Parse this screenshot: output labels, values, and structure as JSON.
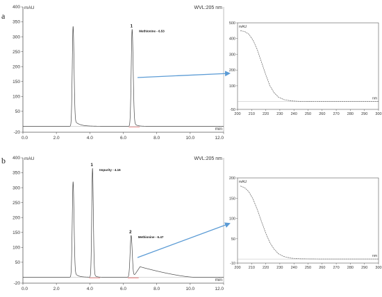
{
  "panels": [
    {
      "letter": "a",
      "chromatogram": {
        "type": "line",
        "y_unit": "mAU",
        "x_unit": "min",
        "wavelength_label": "WVL:205 nm",
        "xlim": [
          0,
          12
        ],
        "ylim": [
          -20,
          400
        ],
        "x_ticks": [
          "0.0",
          "2.0",
          "4.0",
          "6.0",
          "8.0",
          "10.0",
          "12.0"
        ],
        "y_ticks": [
          "-20",
          "50",
          "100",
          "150",
          "200",
          "250",
          "300",
          "350",
          "400"
        ],
        "peaks": [
          {
            "x": 3.0,
            "height": 335,
            "width": 0.05,
            "tail": 0.3
          },
          {
            "x": 6.53,
            "height": 325,
            "width": 0.055,
            "tail": 0.15
          }
        ],
        "peak_labels": [
          {
            "number": "1",
            "text": "Methionine - 6.53",
            "x": 6.53,
            "y": 325
          }
        ]
      },
      "spectrum": {
        "type": "line",
        "y_unit": "mAU",
        "x_unit": "nm",
        "xlim": [
          200,
          300
        ],
        "ylim": [
          -50,
          500
        ],
        "x_ticks": [
          "200",
          "210",
          "220",
          "230",
          "240",
          "250",
          "260",
          "270",
          "280",
          "290",
          "300"
        ],
        "y_ticks": [
          "-50",
          "100",
          "200",
          "300",
          "400",
          "500"
        ],
        "points": [
          [
            202,
            450
          ],
          [
            205,
            445
          ],
          [
            208,
            428
          ],
          [
            211,
            390
          ],
          [
            214,
            330
          ],
          [
            217,
            250
          ],
          [
            220,
            170
          ],
          [
            223,
            100
          ],
          [
            226,
            55
          ],
          [
            229,
            28
          ],
          [
            233,
            12
          ],
          [
            238,
            4
          ],
          [
            245,
            1
          ],
          [
            260,
            0
          ],
          [
            280,
            0
          ],
          [
            300,
            0
          ]
        ]
      }
    },
    {
      "letter": "b",
      "chromatogram": {
        "type": "line",
        "y_unit": "mAU",
        "x_unit": "min",
        "wavelength_label": "WVL:205 nm",
        "xlim": [
          0,
          12
        ],
        "ylim": [
          -20,
          400
        ],
        "x_ticks": [
          "0.0",
          "2.0",
          "4.0",
          "6.0",
          "8.0",
          "10.0",
          "12.0"
        ],
        "y_ticks": [
          "-20",
          "50",
          "100",
          "150",
          "200",
          "250",
          "300",
          "350",
          "400"
        ],
        "peaks": [
          {
            "x": 3.0,
            "height": 320,
            "width": 0.05,
            "tail": 0.2
          },
          {
            "x": 4.16,
            "height": 365,
            "width": 0.045,
            "tail": 0.1
          },
          {
            "x": 6.47,
            "height": 140,
            "width": 0.06,
            "tail": 0.1
          }
        ],
        "hump": {
          "start": 6.6,
          "peak_x": 7.0,
          "peak_y": 35,
          "end": 10.2
        },
        "peak_labels": [
          {
            "number": "1",
            "text": "Impurity - 4.16",
            "x": 4.16,
            "y": 365
          },
          {
            "number": "2",
            "text": "Methionine - 6.47",
            "x": 6.47,
            "y": 140
          }
        ]
      },
      "spectrum": {
        "type": "line",
        "y_unit": "mAU",
        "x_unit": "nm",
        "xlim": [
          200,
          300
        ],
        "ylim": [
          -10,
          200
        ],
        "x_ticks": [
          "200",
          "210",
          "220",
          "230",
          "240",
          "250",
          "260",
          "270",
          "280",
          "290",
          "300"
        ],
        "y_ticks": [
          "-10",
          "50",
          "100",
          "150",
          "200"
        ],
        "points": [
          [
            202,
            180
          ],
          [
            205,
            176
          ],
          [
            208,
            166
          ],
          [
            211,
            148
          ],
          [
            214,
            122
          ],
          [
            217,
            92
          ],
          [
            220,
            64
          ],
          [
            223,
            40
          ],
          [
            226,
            24
          ],
          [
            229,
            13
          ],
          [
            233,
            6
          ],
          [
            238,
            2
          ],
          [
            245,
            0.5
          ],
          [
            260,
            0
          ],
          [
            280,
            0
          ],
          [
            300,
            0
          ]
        ]
      }
    }
  ],
  "colors": {
    "trace": "#444444",
    "axis": "#555555",
    "integration": "#e03030",
    "arrow": "#5b9bd5",
    "spectrum": "#666666"
  }
}
